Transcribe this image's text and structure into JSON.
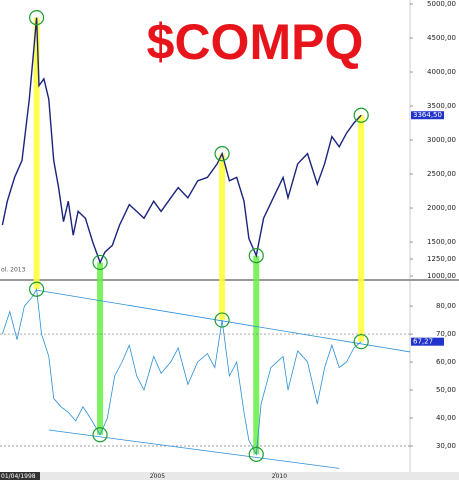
{
  "chart_data": [
    {
      "type": "line",
      "title": "$COMPQ",
      "annotation": "ol. 2013",
      "color": "#1a237e",
      "xlim": [
        1998.7,
        2015.5
      ],
      "x": [
        1998.8,
        1999.0,
        1999.3,
        1999.6,
        1999.9,
        2000.1,
        2000.2,
        2000.3,
        2000.5,
        2000.7,
        2000.9,
        2001.1,
        2001.3,
        2001.5,
        2001.7,
        2001.9,
        2002.2,
        2002.5,
        2002.8,
        2003.0,
        2003.3,
        2003.6,
        2004.0,
        2004.3,
        2004.6,
        2005.0,
        2005.3,
        2005.7,
        2006.0,
        2006.4,
        2006.8,
        2007.2,
        2007.6,
        2007.8,
        2008.1,
        2008.4,
        2008.7,
        2008.9,
        2009.2,
        2009.5,
        2009.9,
        2010.3,
        2010.5,
        2010.9,
        2011.3,
        2011.7,
        2012.0,
        2012.3,
        2012.6,
        2012.9,
        2013.2,
        2013.5
      ],
      "values": [
        1750,
        2100,
        2450,
        2700,
        3600,
        4400,
        4800,
        3800,
        3900,
        3600,
        2700,
        2300,
        1800,
        2100,
        1600,
        1950,
        1850,
        1500,
        1200,
        1350,
        1450,
        1750,
        2050,
        1950,
        1850,
        2100,
        1950,
        2150,
        2300,
        2150,
        2400,
        2450,
        2650,
        2800,
        2400,
        2450,
        2100,
        1550,
        1300,
        1850,
        2150,
        2450,
        2150,
        2650,
        2800,
        2350,
        2650,
        3050,
        2900,
        3100,
        3250,
        3364.5
      ],
      "last_label": "3364,50",
      "highlights": [
        {
          "x": 2000.2,
          "color": "#ffff33"
        },
        {
          "x": 2002.8,
          "color": "#66ee44"
        },
        {
          "x": 2007.8,
          "color": "#ffff33"
        },
        {
          "x": 2009.2,
          "color": "#66ee44"
        },
        {
          "x": 2013.5,
          "color": "#ffff33"
        }
      ],
      "ylim": [
        971,
        5059
      ],
      "yticks": [
        {
          "value": 1000,
          "label": "1000,00"
        },
        {
          "value": 1250,
          "label": "1250,00"
        },
        {
          "value": 1500,
          "label": "1500,00"
        },
        {
          "value": 2000,
          "label": "2000,00"
        },
        {
          "value": 2500,
          "label": "2500,00"
        },
        {
          "value": 3000,
          "label": "3000,00"
        },
        {
          "value": 3500,
          "label": "3500,00"
        },
        {
          "value": 4000,
          "label": "4000,00"
        },
        {
          "value": 4500,
          "label": "4500,00"
        },
        {
          "value": 5000,
          "label": "5000,00"
        }
      ]
    },
    {
      "type": "line",
      "color": "#2a8fd6",
      "xlim": [
        1998.7,
        2015.5
      ],
      "x": [
        1998.8,
        1999.1,
        1999.4,
        1999.7,
        2000.0,
        2000.2,
        2000.4,
        2000.7,
        2000.9,
        2001.2,
        2001.5,
        2001.8,
        2002.1,
        2002.4,
        2002.8,
        2003.1,
        2003.4,
        2003.7,
        2004.0,
        2004.3,
        2004.6,
        2005.0,
        2005.3,
        2005.7,
        2006.0,
        2006.4,
        2006.8,
        2007.2,
        2007.5,
        2007.8,
        2008.1,
        2008.4,
        2008.7,
        2008.9,
        2009.2,
        2009.4,
        2009.8,
        2010.3,
        2010.5,
        2010.9,
        2011.3,
        2011.7,
        2012.0,
        2012.3,
        2012.6,
        2012.9,
        2013.2,
        2013.5
      ],
      "values": [
        70,
        78,
        68,
        80,
        83,
        86,
        70,
        62,
        47,
        44,
        42,
        39,
        44,
        40,
        34,
        40,
        55,
        60,
        66,
        55,
        50,
        62,
        56,
        60,
        65,
        52,
        60,
        63,
        58,
        75,
        55,
        60,
        42,
        32,
        27,
        45,
        58,
        62,
        50,
        64,
        60,
        45,
        58,
        66,
        58,
        60,
        65,
        67.27
      ],
      "last_label": "67,27",
      "trendlines": [
        {
          "x": [
            2000.2,
            2015.5
          ],
          "values": [
            85.7,
            63.6
          ]
        },
        {
          "x": [
            2000.7,
            2012.6
          ],
          "values": [
            35.7,
            22
          ]
        }
      ],
      "reference_lines": [
        70,
        30
      ],
      "ylim": [
        20.7,
        88.6
      ],
      "yticks": [
        {
          "value": 30,
          "label": "30,00"
        },
        {
          "value": 40,
          "label": "40,00"
        },
        {
          "value": 50,
          "label": "50,00"
        },
        {
          "value": 60,
          "label": "60,00"
        },
        {
          "value": 70,
          "label": "70,00"
        },
        {
          "value": 80,
          "label": "80,00"
        }
      ],
      "xticks": [
        {
          "value": 1998.7,
          "label": "01/04/1998"
        },
        2005,
        2010
      ]
    }
  ]
}
